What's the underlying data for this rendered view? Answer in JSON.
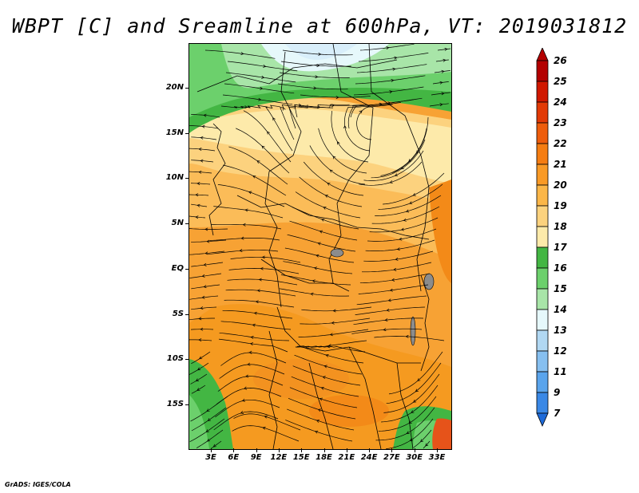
{
  "title": "WBPT [C] and Sreamline at 600hPa, VT: 2019031812",
  "credit": "GrADS: IGES/COLA",
  "map": {
    "lat_labels": [
      "20N",
      "15N",
      "10N",
      "5N",
      "EQ",
      "5S",
      "10S",
      "15S"
    ],
    "lon_labels": [
      "3E",
      "6E",
      "9E",
      "12E",
      "15E",
      "18E",
      "21E",
      "24E",
      "27E",
      "30E",
      "33E"
    ],
    "fields": [
      "wet-bulb potential temperature shading",
      "streamlines",
      "country boundaries"
    ]
  },
  "colorbar": {
    "labels": [
      "26",
      "25",
      "24",
      "23",
      "22",
      "21",
      "20",
      "19",
      "18",
      "17",
      "16",
      "15",
      "14",
      "13",
      "12",
      "11",
      "9",
      "7"
    ],
    "colors": [
      "#b30000",
      "#d01800",
      "#e23a06",
      "#ee5d0c",
      "#f57d12",
      "#f99a26",
      "#fbb648",
      "#fcd27e",
      "#fdeaaa",
      "#43b643",
      "#6cd06c",
      "#a8e5a8",
      "#e6f8fb",
      "#b1d8f3",
      "#86bff0",
      "#5aa4ec",
      "#3a88e6",
      "#1e6ad8"
    ]
  }
}
